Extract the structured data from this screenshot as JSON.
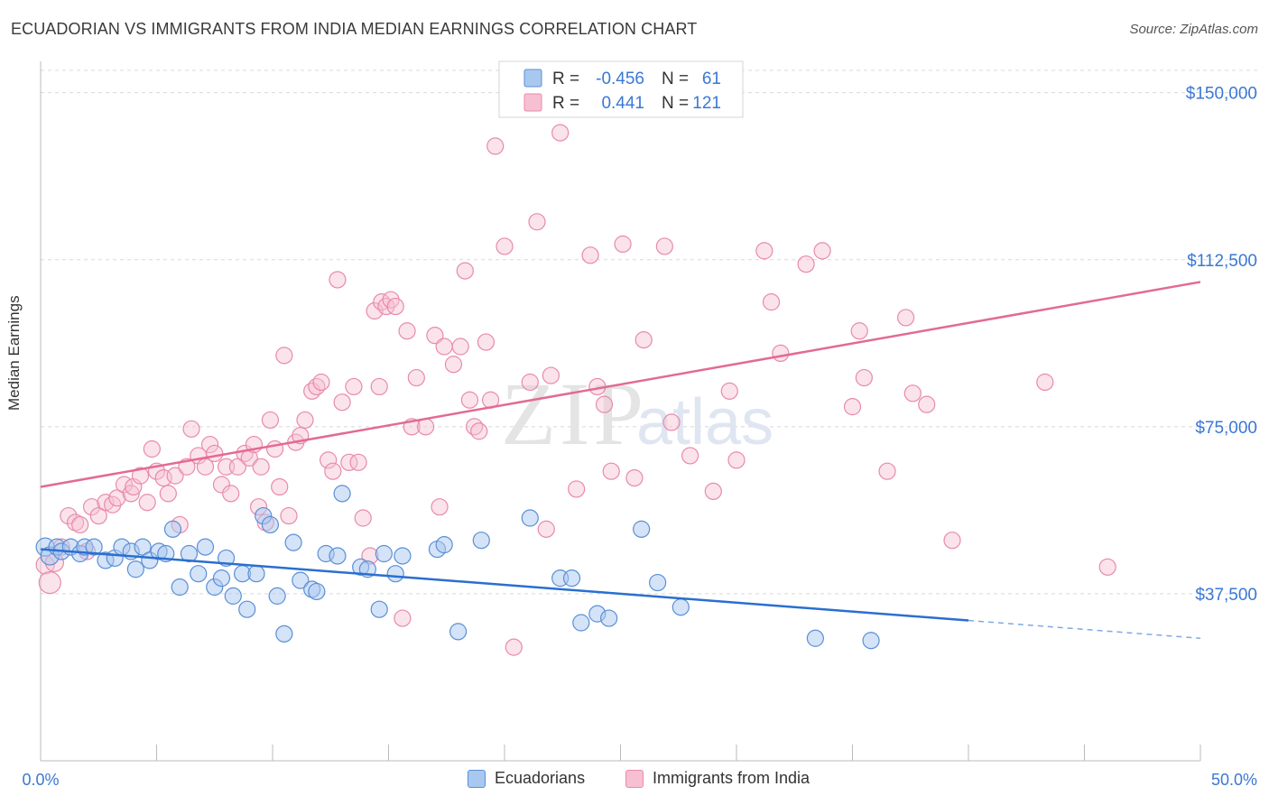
{
  "title": "ECUADORIAN VS IMMIGRANTS FROM INDIA MEDIAN EARNINGS CORRELATION CHART",
  "source": "Source: ZipAtlas.com",
  "watermark": {
    "zip": "ZIP",
    "atlas": "atlas"
  },
  "colors": {
    "blue_fill": "#a9c8f0",
    "blue_stroke": "#5a8fd6",
    "blue_line": "#2a6fd0",
    "pink_fill": "#f6c0d2",
    "pink_stroke": "#e88aaa",
    "pink_line": "#e26a95",
    "axis_text": "#3a78d4"
  },
  "legend_top": {
    "rows": [
      {
        "r_label": "R =",
        "r_value": "-0.456",
        "n_label": "N =",
        "n_value": "61"
      },
      {
        "r_label": "R =",
        "r_value": "0.441",
        "n_label": "N =",
        "n_value": "121"
      }
    ]
  },
  "legend_bottom": [
    "Ecuadorians",
    "Immigrants from India"
  ],
  "chart_data": {
    "type": "scatter",
    "title": "ECUADORIAN VS IMMIGRANTS FROM INDIA MEDIAN EARNINGS CORRELATION CHART",
    "xlabel": "",
    "ylabel": "Median Earnings",
    "xlim": [
      0,
      50
    ],
    "ylim": [
      0,
      155000
    ],
    "x_tick_labels": [
      "0.0%",
      "50.0%"
    ],
    "y_ticks": [
      37500,
      75000,
      112500,
      150000
    ],
    "y_tick_labels": [
      "$37,500",
      "$75,000",
      "$112,500",
      "$150,000"
    ],
    "grid": "horizontal dashed",
    "legend_placement": "top-center",
    "series": [
      {
        "name": "Ecuadorians",
        "points": [
          [
            0.2,
            48000
          ],
          [
            0.4,
            46000
          ],
          [
            0.7,
            48000
          ],
          [
            0.9,
            47000
          ],
          [
            1.3,
            48000
          ],
          [
            1.7,
            46500
          ],
          [
            1.9,
            48000
          ],
          [
            2.3,
            48000
          ],
          [
            2.8,
            45000
          ],
          [
            3.2,
            45500
          ],
          [
            3.5,
            48000
          ],
          [
            3.9,
            47000
          ],
          [
            4.1,
            43000
          ],
          [
            4.4,
            48000
          ],
          [
            4.7,
            45000
          ],
          [
            5.1,
            47000
          ],
          [
            5.4,
            46500
          ],
          [
            5.7,
            52000
          ],
          [
            6.0,
            39000
          ],
          [
            6.4,
            46500
          ],
          [
            6.8,
            42000
          ],
          [
            7.1,
            48000
          ],
          [
            7.5,
            39000
          ],
          [
            7.8,
            41000
          ],
          [
            8.0,
            45500
          ],
          [
            8.3,
            37000
          ],
          [
            8.7,
            42000
          ],
          [
            8.9,
            34000
          ],
          [
            9.3,
            42000
          ],
          [
            9.6,
            55000
          ],
          [
            9.9,
            53000
          ],
          [
            10.2,
            37000
          ],
          [
            10.5,
            28500
          ],
          [
            10.9,
            49000
          ],
          [
            11.2,
            40500
          ],
          [
            11.7,
            38500
          ],
          [
            11.9,
            38000
          ],
          [
            12.3,
            46500
          ],
          [
            12.8,
            46000
          ],
          [
            13.0,
            60000
          ],
          [
            13.8,
            43500
          ],
          [
            14.1,
            43000
          ],
          [
            14.6,
            34000
          ],
          [
            14.8,
            46500
          ],
          [
            15.3,
            42000
          ],
          [
            15.6,
            46000
          ],
          [
            17.1,
            47500
          ],
          [
            17.4,
            48500
          ],
          [
            18.0,
            29000
          ],
          [
            19.0,
            49500
          ],
          [
            21.1,
            54500
          ],
          [
            22.4,
            41000
          ],
          [
            22.9,
            41000
          ],
          [
            23.3,
            31000
          ],
          [
            24.0,
            33000
          ],
          [
            24.5,
            32000
          ],
          [
            25.9,
            52000
          ],
          [
            26.6,
            40000
          ],
          [
            27.6,
            34500
          ],
          [
            33.4,
            27500
          ],
          [
            35.8,
            27000
          ]
        ]
      },
      {
        "name": "Immigrants from India",
        "points": [
          [
            0.2,
            44000
          ],
          [
            0.4,
            40000
          ],
          [
            0.6,
            44500
          ],
          [
            0.9,
            48000
          ],
          [
            1.2,
            55000
          ],
          [
            1.5,
            53500
          ],
          [
            1.7,
            53000
          ],
          [
            2.0,
            47000
          ],
          [
            2.2,
            57000
          ],
          [
            2.5,
            55000
          ],
          [
            2.8,
            58000
          ],
          [
            3.1,
            57500
          ],
          [
            3.3,
            59000
          ],
          [
            3.6,
            62000
          ],
          [
            3.9,
            60000
          ],
          [
            4.0,
            61500
          ],
          [
            4.3,
            64000
          ],
          [
            4.6,
            58000
          ],
          [
            4.8,
            70000
          ],
          [
            5.0,
            65000
          ],
          [
            5.3,
            63500
          ],
          [
            5.5,
            60000
          ],
          [
            5.8,
            64000
          ],
          [
            6.0,
            53000
          ],
          [
            6.3,
            66000
          ],
          [
            6.5,
            74500
          ],
          [
            6.8,
            68500
          ],
          [
            7.1,
            66000
          ],
          [
            7.3,
            71000
          ],
          [
            7.5,
            69000
          ],
          [
            7.8,
            62000
          ],
          [
            8.0,
            66000
          ],
          [
            8.2,
            60000
          ],
          [
            8.5,
            66000
          ],
          [
            8.8,
            69000
          ],
          [
            9.0,
            68000
          ],
          [
            9.2,
            71000
          ],
          [
            9.4,
            57000
          ],
          [
            9.5,
            66000
          ],
          [
            9.7,
            53500
          ],
          [
            9.9,
            76500
          ],
          [
            10.1,
            70000
          ],
          [
            10.3,
            61500
          ],
          [
            10.5,
            91000
          ],
          [
            10.7,
            55000
          ],
          [
            11.0,
            71500
          ],
          [
            11.2,
            73000
          ],
          [
            11.4,
            76500
          ],
          [
            11.7,
            83000
          ],
          [
            11.9,
            84000
          ],
          [
            12.1,
            85000
          ],
          [
            12.4,
            67500
          ],
          [
            12.6,
            65000
          ],
          [
            12.8,
            108000
          ],
          [
            13.0,
            80500
          ],
          [
            13.3,
            67000
          ],
          [
            13.5,
            84000
          ],
          [
            13.7,
            67000
          ],
          [
            13.9,
            54500
          ],
          [
            14.2,
            46000
          ],
          [
            14.4,
            101000
          ],
          [
            14.6,
            84000
          ],
          [
            14.7,
            103000
          ],
          [
            14.9,
            102000
          ],
          [
            15.1,
            103500
          ],
          [
            15.3,
            102000
          ],
          [
            15.6,
            32000
          ],
          [
            15.8,
            96500
          ],
          [
            16.0,
            75000
          ],
          [
            16.2,
            86000
          ],
          [
            16.6,
            75000
          ],
          [
            17.0,
            95500
          ],
          [
            17.2,
            57000
          ],
          [
            17.4,
            93000
          ],
          [
            17.8,
            89000
          ],
          [
            18.1,
            93000
          ],
          [
            18.3,
            110000
          ],
          [
            18.5,
            81000
          ],
          [
            18.7,
            75000
          ],
          [
            18.9,
            74000
          ],
          [
            19.2,
            94000
          ],
          [
            19.4,
            81000
          ],
          [
            19.6,
            138000
          ],
          [
            20.0,
            115500
          ],
          [
            20.4,
            25500
          ],
          [
            21.1,
            85000
          ],
          [
            21.4,
            121000
          ],
          [
            21.8,
            52000
          ],
          [
            22.0,
            86500
          ],
          [
            22.4,
            141000
          ],
          [
            23.1,
            61000
          ],
          [
            23.7,
            113500
          ],
          [
            24.0,
            84000
          ],
          [
            24.3,
            80000
          ],
          [
            24.6,
            65000
          ],
          [
            25.1,
            116000
          ],
          [
            25.6,
            63500
          ],
          [
            26.0,
            94500
          ],
          [
            26.9,
            115500
          ],
          [
            27.2,
            76000
          ],
          [
            28.0,
            68500
          ],
          [
            29.0,
            60500
          ],
          [
            29.7,
            83000
          ],
          [
            30.0,
            67500
          ],
          [
            31.2,
            114500
          ],
          [
            31.5,
            103000
          ],
          [
            31.9,
            91500
          ],
          [
            33.0,
            111500
          ],
          [
            33.7,
            114500
          ],
          [
            35.0,
            79500
          ],
          [
            35.3,
            96500
          ],
          [
            35.5,
            86000
          ],
          [
            36.5,
            65000
          ],
          [
            37.3,
            99500
          ],
          [
            37.6,
            82500
          ],
          [
            38.2,
            80000
          ],
          [
            39.3,
            49500
          ],
          [
            43.3,
            85000
          ],
          [
            46.0,
            43500
          ]
        ]
      }
    ],
    "trend_lines": [
      {
        "name": "Ecuadorians",
        "x_solid": [
          0,
          40
        ],
        "y_solid": [
          47500,
          31500
        ],
        "x_dashed": [
          40,
          50
        ],
        "y_dashed": [
          31500,
          27500
        ]
      },
      {
        "name": "Immigrants from India",
        "x": [
          0,
          50
        ],
        "y": [
          61500,
          107500
        ]
      }
    ]
  }
}
